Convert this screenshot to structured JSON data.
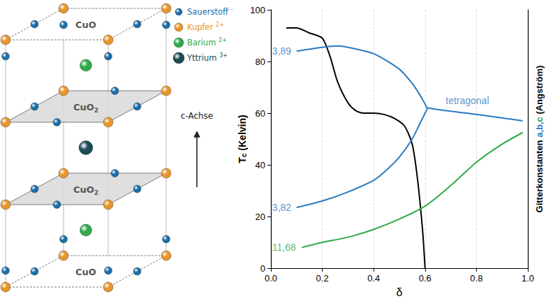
{
  "diagram": {
    "planes": [
      {
        "base": "CuO"
      },
      {
        "base": "CuO",
        "sub": "2"
      },
      {
        "base": "CuO",
        "sub": "2"
      },
      {
        "base": "CuO"
      }
    ],
    "legend": [
      {
        "name": "Sauerstoff",
        "charge": "-",
        "color": "#1a6ea8"
      },
      {
        "name": "Kupfer",
        "charge": "2+",
        "color": "#e8952a"
      },
      {
        "name": "Barium",
        "charge": "2+",
        "color": "#2faa4a"
      },
      {
        "name": "Yttrium",
        "charge": "3+",
        "color": "#1d4a55"
      }
    ],
    "axis_arrow": "c-Achse"
  },
  "chart_data": {
    "type": "line",
    "xlabel": "δ",
    "ylabel": {
      "base": "T",
      "sub": "c",
      "unit": " (Kelvin)"
    },
    "y2label": [
      {
        "text": "Gitterkonstanten ",
        "color": "#000000"
      },
      {
        "text": "a,b,",
        "color": "#2a7ac0"
      },
      {
        "text": "c",
        "color": "#2faa4a"
      },
      {
        "text": " (Angström)",
        "color": "#000000"
      }
    ],
    "xlim": [
      0,
      1
    ],
    "xticks": [
      {
        "value": 0,
        "label": "0.0"
      },
      0.2,
      0.4,
      0.6,
      0.8,
      {
        "value": 1,
        "label": "1.0"
      }
    ],
    "ylim": [
      0,
      100
    ],
    "yticks": [
      0,
      20,
      40,
      60,
      80,
      100
    ],
    "y2lim": [
      0,
      100
    ],
    "y2ticks": [],
    "grid": "x",
    "series": [
      {
        "color": "#000000",
        "x": [
          0.06,
          0.1,
          0.15,
          0.2,
          0.23,
          0.26,
          0.3,
          0.33,
          0.36,
          0.4,
          0.44,
          0.48,
          0.52,
          0.55,
          0.57,
          0.59,
          0.6
        ],
        "values": [
          93,
          93,
          91,
          89,
          82,
          72,
          64,
          61,
          60,
          60,
          59.5,
          58,
          55,
          48,
          35,
          15,
          0
        ]
      },
      {
        "color": "#2a7ac0",
        "axis": "y2",
        "x": [
          0.1,
          0.2,
          0.26,
          0.3,
          0.4,
          0.5,
          0.55,
          0.58,
          0.6,
          0.61,
          0.8,
          0.98
        ],
        "values": [
          84,
          85.5,
          86,
          85.5,
          83,
          77,
          71.5,
          67,
          63.5,
          62,
          59.5,
          57
        ]
      },
      {
        "color": "#2a7ac0",
        "axis": "y2",
        "x": [
          0.1,
          0.2,
          0.3,
          0.4,
          0.45,
          0.5,
          0.55,
          0.58,
          0.6,
          0.61
        ],
        "values": [
          23.5,
          26,
          29.5,
          34,
          38,
          43,
          50,
          56,
          60,
          62
        ]
      },
      {
        "color": "#2faa4a",
        "axis": "y2",
        "x": [
          0.12,
          0.2,
          0.3,
          0.4,
          0.5,
          0.6,
          0.7,
          0.8,
          0.9,
          0.98
        ],
        "values": [
          8,
          10,
          12,
          15,
          19,
          24,
          32,
          41,
          48,
          52.5
        ]
      }
    ],
    "annotations": [
      {
        "text": "3,89",
        "x": 0.005,
        "y": 84,
        "color": "#2a7ac0",
        "axis": "y2"
      },
      {
        "text": "3,82",
        "x": 0.005,
        "y": 23.5,
        "color": "#2a7ac0",
        "axis": "y2"
      },
      {
        "text": "11,68",
        "x": 0.005,
        "y": 8,
        "color": "#2faa4a",
        "axis": "y2"
      },
      {
        "text": "tetragonal",
        "x": 0.68,
        "y": 65,
        "color": "#2a7ac0",
        "axis": "y2"
      }
    ]
  }
}
